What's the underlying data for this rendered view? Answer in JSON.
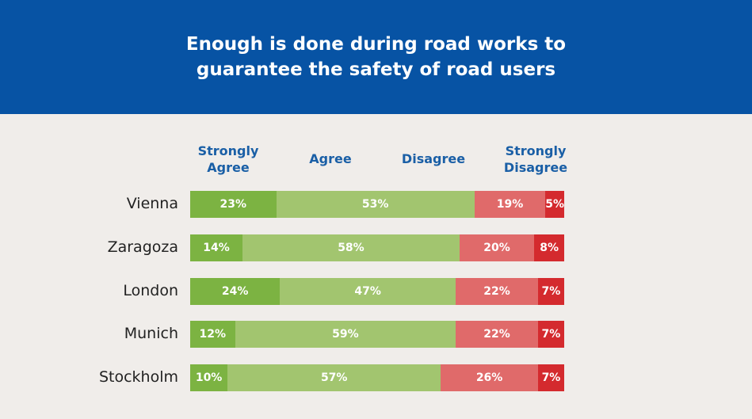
{
  "header": {
    "title_line1": "Enough is done during road works to",
    "title_line2": "guarantee the safety of road users"
  },
  "legend": {
    "strongly_agree_line1": "Strongly",
    "strongly_agree_line2": "Agree",
    "agree": "Agree",
    "disagree": "Disagree",
    "strongly_disagree_line1": "Strongly",
    "strongly_disagree_line2": "Disagree"
  },
  "colors": {
    "header_bg": "#0753a4",
    "strongly_agree": "#7cb342",
    "agree": "#a2c56f",
    "disagree": "#e06a6a",
    "strongly_disagree": "#d42a2e"
  },
  "chart_data": {
    "type": "bar",
    "orientation": "horizontal",
    "stacked": true,
    "categories": [
      "Vienna",
      "Zaragoza",
      "London",
      "Munich",
      "Stockholm"
    ],
    "series": [
      {
        "name": "Strongly Agree",
        "values": [
          23,
          14,
          24,
          12,
          10
        ],
        "labels": [
          "23%",
          "14%",
          "24%",
          "12%",
          "10%"
        ]
      },
      {
        "name": "Agree",
        "values": [
          53,
          58,
          47,
          59,
          57
        ],
        "labels": [
          "53%",
          "58%",
          "47%",
          "59%",
          "57%"
        ]
      },
      {
        "name": "Disagree",
        "values": [
          19,
          20,
          22,
          22,
          26
        ],
        "labels": [
          "19%",
          "20%",
          "22%",
          "22%",
          "26%"
        ]
      },
      {
        "name": "Strongly Disagree",
        "values": [
          5,
          8,
          7,
          7,
          7
        ],
        "labels": [
          "5%",
          "8%",
          "7%",
          "7%",
          "7%"
        ]
      }
    ]
  }
}
